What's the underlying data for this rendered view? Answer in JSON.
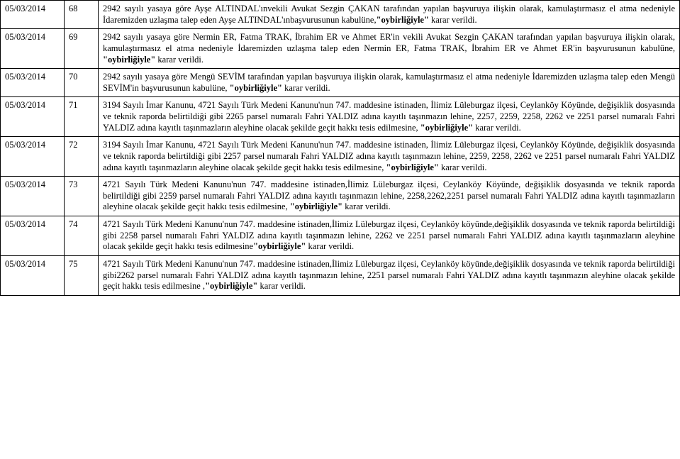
{
  "rows": [
    {
      "date": "05/03/2014",
      "num": "68",
      "segments": [
        {
          "t": "2942 sayılı yasaya göre Ayşe ALTINDAL'ınvekili Avukat Sezgin ÇAKAN tarafından yapılan başvuruya ilişkin olarak, kamulaştırmasız el atma nedeniyle İdaremizden uzlaşma talep eden Ayşe ALTINDAL'ınbaşvurusunun kabulüne,",
          "b": false
        },
        {
          "t": "\"oybirliğiyle\"",
          "b": true
        },
        {
          "t": " karar verildi.",
          "b": false
        }
      ]
    },
    {
      "date": "05/03/2014",
      "num": "69",
      "segments": [
        {
          "t": "2942 sayılı yasaya göre Nermin ER, Fatma TRAK, İbrahim ER ve Ahmet ER'in vekili Avukat Sezgin ÇAKAN tarafından yapılan başvuruya ilişkin olarak, kamulaştırmasız el atma nedeniyle İdaremizden uzlaşma talep eden Nermin ER, Fatma TRAK, İbrahim ER ve Ahmet ER'in başvurusunun kabulüne, ",
          "b": false
        },
        {
          "t": "\"oybirliğiyle\"",
          "b": true
        },
        {
          "t": " karar verildi.",
          "b": false
        }
      ]
    },
    {
      "date": "05/03/2014",
      "num": "70",
      "segments": [
        {
          "t": "2942 sayılı yasaya göre Mengü SEVİM tarafından yapılan başvuruya ilişkin olarak,  kamulaştırmasız el atma nedeniyle İdaremizden uzlaşma talep eden Mengü SEVİM'in başvurusunun kabulüne,  ",
          "b": false
        },
        {
          "t": "\"oybirliğiyle\"",
          "b": true
        },
        {
          "t": " karar verildi.",
          "b": false
        }
      ]
    },
    {
      "date": "05/03/2014",
      "num": "71",
      "segments": [
        {
          "t": "3194 Sayılı İmar Kanunu, 4721 Sayılı Türk Medeni Kanunu'nun 747. maddesine istinaden, İlimiz Lüleburgaz ilçesi, Ceylanköy Köyünde, değişiklik dosyasında ve teknik raporda belirtildiği gibi 2265 parsel numaralı Fahri YALDIZ adına kayıtlı taşınmazın lehine, 2257, 2259, 2258, 2262 ve 2251 parsel numaralı Fahri YALDIZ adına kayıtlı taşınmazların aleyhine olacak şekilde geçit hakkı tesis edilmesine, ",
          "b": false
        },
        {
          "t": "\"oybirliğiyle\"",
          "b": true
        },
        {
          "t": " karar verildi.",
          "b": false
        }
      ]
    },
    {
      "date": "05/03/2014",
      "num": "72",
      "segments": [
        {
          "t": "3194 Sayılı İmar Kanunu, 4721 Sayılı Türk Medeni Kanunu'nun 747. maddesine istinaden, İlimiz Lüleburgaz ilçesi, Ceylanköy Köyünde, değişiklik dosyasında ve teknik raporda belirtildiği gibi 2257 parsel numaralı Fahri YALDIZ adına kayıtlı taşınmazın lehine, 2259, 2258, 2262 ve 2251 parsel numaralı Fahri YALDIZ adına kayıtlı taşınmazların aleyhine olacak şekilde geçit hakkı tesis edilmesine, ",
          "b": false
        },
        {
          "t": "\"oybirliğiyle\"",
          "b": true
        },
        {
          "t": " karar verildi.",
          "b": false
        }
      ]
    },
    {
      "date": "05/03/2014",
      "num": "73",
      "segments": [
        {
          "t": "4721 Sayılı Türk Medeni Kanunu'nun 747. maddesine istinaden,İlimiz Lüleburgaz ilçesi, Ceylanköy Köyünde, değişiklik dosyasında ve teknik raporda belirtildiği gibi 2259 parsel numaralı Fahri YALDIZ adına kayıtlı taşınmazın lehine, 2258,2262,2251 parsel numaralı Fahri YALDIZ adına kayıtlı taşınmazların aleyhine olacak şekilde geçit hakkı tesis edilmesine, ",
          "b": false
        },
        {
          "t": "\"oybirliğiyle\"",
          "b": true
        },
        {
          "t": " karar verildi.",
          "b": false
        }
      ]
    },
    {
      "date": "05/03/2014",
      "num": "74",
      "segments": [
        {
          "t": "4721 Sayılı Türk Medeni Kanunu'nun 747. maddesine istinaden,İlimiz Lüleburgaz ilçesi, Ceylanköy köyünde,değişiklik dosyasında ve teknik raporda belirtildiği gibi 2258 parsel numaralı Fahri YALDIZ adına kayıtlı taşınmazın lehine, 2262 ve 2251 parsel numaralı Fahri YALDIZ adına kayıtlı taşınmazların aleyhine olacak şekilde geçit hakkı tesis edilmesine",
          "b": false
        },
        {
          "t": "\"oybirliğiyle\"",
          "b": true
        },
        {
          "t": " karar verildi.",
          "b": false
        }
      ]
    },
    {
      "date": "05/03/2014",
      "num": "75",
      "segments": [
        {
          "t": "4721 Sayılı Türk Medeni Kanunu'nun 747. maddesine istinaden,İlimiz Lüleburgaz ilçesi, Ceylanköy köyünde,değişiklik dosyasında ve teknik raporda belirtildiği gibi2262 parsel numaralı Fahri YALDIZ adına kayıtlı taşınmazın lehine,  2251 parsel numaralı Fahri YALDIZ adına kayıtlı taşınmazın aleyhine olacak şekilde geçit hakkı tesis edilmesine ,",
          "b": false
        },
        {
          "t": "\"oybirliğiyle\"",
          "b": true
        },
        {
          "t": " karar verildi.",
          "b": false
        }
      ]
    }
  ]
}
